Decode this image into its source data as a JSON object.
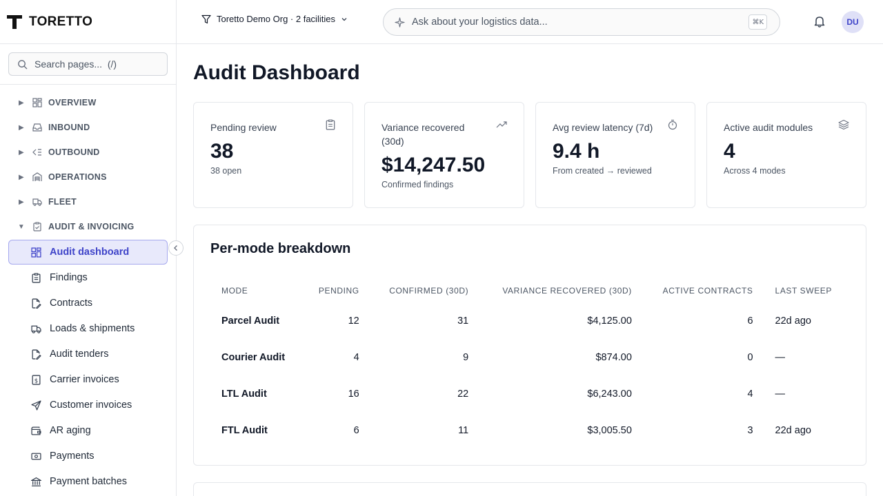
{
  "brand": {
    "name": "TORETTO"
  },
  "sidebar": {
    "search_placeholder": "Search pages...  (/)",
    "groups": [
      {
        "label": "OVERVIEW",
        "icon": "grid-icon",
        "expanded": false
      },
      {
        "label": "INBOUND",
        "icon": "inbox-icon",
        "expanded": false
      },
      {
        "label": "OUTBOUND",
        "icon": "outbound-icon",
        "expanded": false
      },
      {
        "label": "OPERATIONS",
        "icon": "warehouse-icon",
        "expanded": false
      },
      {
        "label": "FLEET",
        "icon": "truck-icon",
        "expanded": false
      },
      {
        "label": "AUDIT & INVOICING",
        "icon": "clipboard-check-icon",
        "expanded": true
      }
    ],
    "audit_items": [
      {
        "label": "Audit dashboard",
        "icon": "grid-icon",
        "active": true
      },
      {
        "label": "Findings",
        "icon": "clipboard-icon"
      },
      {
        "label": "Contracts",
        "icon": "file-edit-icon"
      },
      {
        "label": "Loads & shipments",
        "icon": "truck-icon"
      },
      {
        "label": "Audit tenders",
        "icon": "file-edit-icon"
      },
      {
        "label": "Carrier invoices",
        "icon": "dollar-file-icon"
      },
      {
        "label": "Customer invoices",
        "icon": "send-icon"
      },
      {
        "label": "AR aging",
        "icon": "wallet-icon"
      },
      {
        "label": "Payments",
        "icon": "banknote-icon"
      },
      {
        "label": "Payment batches",
        "icon": "bank-icon"
      }
    ]
  },
  "header": {
    "org_label": "Toretto Demo Org · 2 facilities",
    "ask_placeholder": "Ask about your logistics data...",
    "shortcut": "⌘K",
    "avatar_initials": "DU"
  },
  "main": {
    "title": "Audit Dashboard",
    "stats": [
      {
        "label": "Pending review",
        "value": "38",
        "sub": "38 open",
        "icon": "clipboard-icon"
      },
      {
        "label": "Variance recovered (30d)",
        "value": "$14,247.50",
        "sub": "Confirmed findings",
        "icon": "trending-up-icon"
      },
      {
        "label": "Avg review latency (7d)",
        "value": "9.4 h",
        "sub": "From created → reviewed",
        "icon": "stopwatch-icon"
      },
      {
        "label": "Active audit modules",
        "value": "4",
        "sub": "Across 4 modes",
        "icon": "layers-icon"
      }
    ],
    "breakdown": {
      "title": "Per-mode breakdown",
      "columns": [
        "MODE",
        "PENDING",
        "CONFIRMED (30D)",
        "VARIANCE RECOVERED (30D)",
        "ACTIVE CONTRACTS",
        "LAST SWEEP"
      ],
      "rows": [
        [
          "Parcel Audit",
          "12",
          "31",
          "$4,125.00",
          "6",
          "22d ago"
        ],
        [
          "Courier Audit",
          "4",
          "9",
          "$874.00",
          "0",
          "—"
        ],
        [
          "LTL Audit",
          "16",
          "22",
          "$6,243.00",
          "4",
          "—"
        ],
        [
          "FTL Audit",
          "6",
          "11",
          "$3,005.50",
          "3",
          "22d ago"
        ]
      ]
    }
  }
}
